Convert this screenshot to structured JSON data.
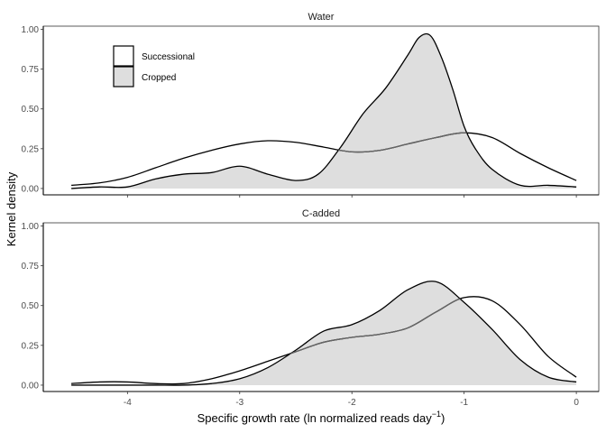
{
  "chart_data": {
    "type": "area",
    "xlabel": "Specific growth rate (ln normalized reads day",
    "xlabel_sup": "−1",
    "xlabel_close": ")",
    "ylabel": "Kernel density",
    "xlim": [
      -4.75,
      0.2
    ],
    "ylim": [
      -0.04,
      1.02
    ],
    "x_ticks": [
      -4,
      -3,
      -2,
      -1,
      0
    ],
    "x_tick_labels": [
      "-4",
      "-3",
      "-2",
      "-1",
      "0"
    ],
    "y_ticks": [
      0,
      0.25,
      0.5,
      0.75,
      1
    ],
    "y_tick_labels": [
      "0.00",
      "0.25",
      "0.50",
      "0.75",
      "1.00"
    ],
    "legend": {
      "placement": "top-left inside first panel",
      "entries": [
        {
          "label": "Successional",
          "fill": "#ffffff"
        },
        {
          "label": "Cropped",
          "fill": "#dedede"
        }
      ]
    },
    "colors": {
      "successional_fill": "#ffffff",
      "cropped_fill": "#dedede",
      "outline": "#000000",
      "overlap_line": "#666666"
    },
    "panels": [
      {
        "title": "Water",
        "series": [
          {
            "name": "Successional",
            "x": [
              -4.5,
              -4.25,
              -4.0,
              -3.75,
              -3.5,
              -3.25,
              -3.0,
              -2.75,
              -2.5,
              -2.25,
              -2.0,
              -1.75,
              -1.5,
              -1.25,
              -1.0,
              -0.75,
              -0.5,
              -0.25,
              0.0
            ],
            "y": [
              0.02,
              0.035,
              0.07,
              0.13,
              0.19,
              0.24,
              0.28,
              0.3,
              0.29,
              0.26,
              0.23,
              0.24,
              0.28,
              0.32,
              0.35,
              0.32,
              0.22,
              0.13,
              0.05
            ]
          },
          {
            "name": "Cropped",
            "x": [
              -4.5,
              -4.25,
              -4.0,
              -3.75,
              -3.5,
              -3.25,
              -3.0,
              -2.75,
              -2.5,
              -2.3,
              -2.1,
              -1.9,
              -1.7,
              -1.5,
              -1.4,
              -1.3,
              -1.2,
              -1.1,
              -1.0,
              -0.9,
              -0.75,
              -0.5,
              -0.25,
              0.0
            ],
            "y": [
              0.0,
              0.01,
              0.01,
              0.06,
              0.09,
              0.1,
              0.14,
              0.09,
              0.05,
              0.09,
              0.26,
              0.47,
              0.63,
              0.84,
              0.95,
              0.96,
              0.82,
              0.62,
              0.39,
              0.25,
              0.12,
              0.02,
              0.02,
              0.01
            ]
          }
        ]
      },
      {
        "title": "C-added",
        "series": [
          {
            "name": "Successional",
            "x": [
              -4.5,
              -4.25,
              -4.0,
              -3.75,
              -3.5,
              -3.25,
              -3.0,
              -2.75,
              -2.5,
              -2.25,
              -2.0,
              -1.75,
              -1.5,
              -1.25,
              -1.0,
              -0.75,
              -0.5,
              -0.25,
              0.0
            ],
            "y": [
              0.01,
              0.02,
              0.02,
              0.01,
              0.01,
              0.04,
              0.09,
              0.15,
              0.21,
              0.27,
              0.3,
              0.32,
              0.36,
              0.46,
              0.55,
              0.53,
              0.38,
              0.18,
              0.05
            ]
          },
          {
            "name": "Cropped",
            "x": [
              -4.5,
              -4.25,
              -4.0,
              -3.75,
              -3.5,
              -3.25,
              -3.0,
              -2.75,
              -2.5,
              -2.25,
              -2.0,
              -1.75,
              -1.5,
              -1.25,
              -1.0,
              -0.75,
              -0.5,
              -0.25,
              0.0
            ],
            "y": [
              0.0,
              0.0,
              0.0,
              0.0,
              0.0,
              0.01,
              0.04,
              0.11,
              0.22,
              0.34,
              0.38,
              0.47,
              0.6,
              0.65,
              0.52,
              0.35,
              0.16,
              0.05,
              0.02
            ]
          }
        ]
      }
    ]
  }
}
